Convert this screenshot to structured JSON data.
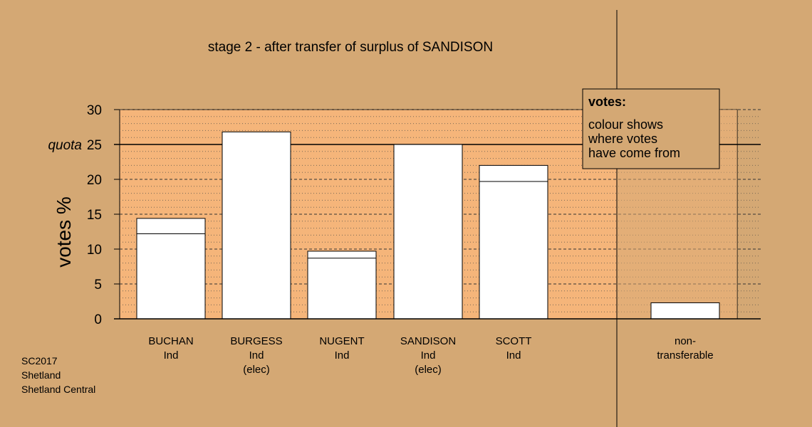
{
  "chart_data": {
    "type": "bar",
    "title": "stage 2 - after transfer of surplus of SANDISON",
    "ylabel": "votes %",
    "ylim": [
      0,
      30
    ],
    "yticks": [
      0,
      5,
      10,
      15,
      20,
      25,
      30
    ],
    "quota": {
      "label": "quota",
      "value": 25
    },
    "categories": [
      {
        "lines": [
          "BUCHAN",
          "Ind"
        ]
      },
      {
        "lines": [
          "BURGESS",
          "Ind",
          "(elec)"
        ]
      },
      {
        "lines": [
          "NUGENT",
          "Ind"
        ]
      },
      {
        "lines": [
          "SANDISON",
          "Ind",
          "(elec)"
        ]
      },
      {
        "lines": [
          "SCOTT",
          "Ind"
        ]
      },
      {
        "lines": [
          "non-",
          "transferable"
        ]
      }
    ],
    "stage1_values": [
      12.2,
      26.8,
      8.7,
      25.0,
      19.7,
      0
    ],
    "values": [
      14.4,
      26.8,
      9.7,
      25.0,
      22.0,
      2.3
    ],
    "legend": {
      "title": "votes:",
      "lines": [
        "colour shows",
        "where votes",
        "have come from"
      ]
    },
    "colors": {
      "background": "#d4a874",
      "plot_area": "#f5b57a",
      "bar": "#ffffff",
      "box": "#d4a874"
    }
  },
  "footer": {
    "line1": "SC2017",
    "line2": "Shetland",
    "line3": "Shetland Central"
  }
}
